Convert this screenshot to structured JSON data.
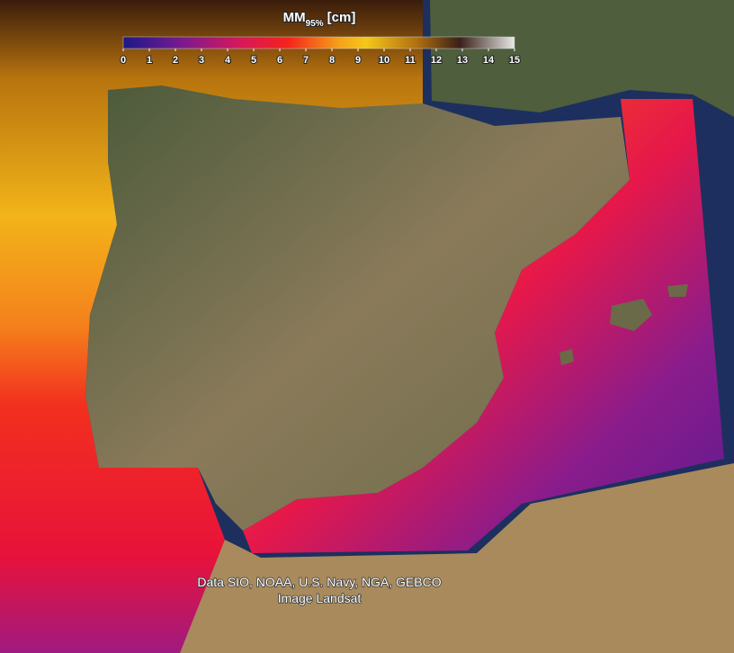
{
  "colorbar": {
    "title": {
      "main": "MM",
      "subscript": "95%",
      "unit": "[cm]"
    },
    "range": [
      0,
      15
    ],
    "ticks": [
      0,
      1,
      2,
      3,
      4,
      5,
      6,
      7,
      8,
      9,
      10,
      11,
      12,
      13,
      14,
      15
    ]
  },
  "attribution": [
    "Data SIO, NOAA, U.S. Navy, NGA, GEBCO",
    "Image Landsat"
  ]
}
